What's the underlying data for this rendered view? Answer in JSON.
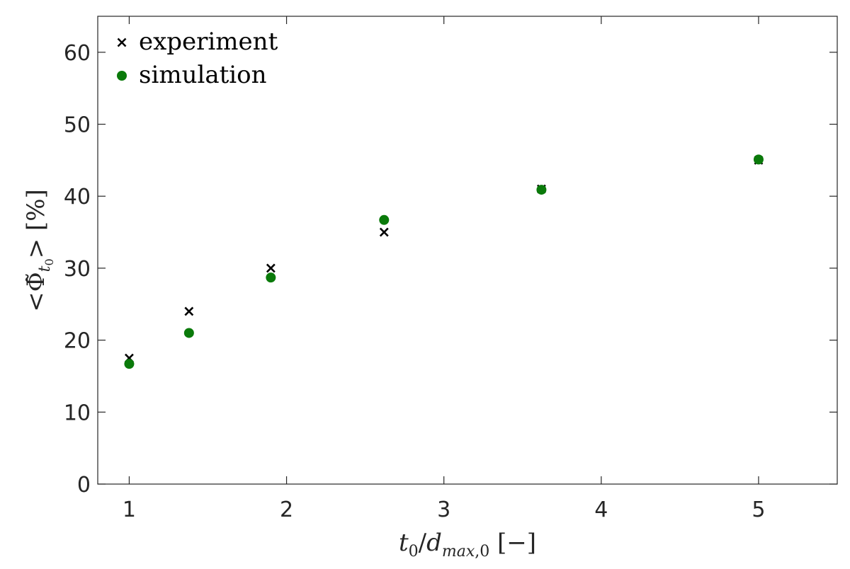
{
  "chart_data": {
    "type": "scatter",
    "title": "",
    "xlabel": "t₀/d_max,0 [−]",
    "ylabel": "<Φ̃_t₀> [%]",
    "xlim": [
      0.8,
      5.5
    ],
    "ylim": [
      0,
      65
    ],
    "xticks": [
      "1",
      "2",
      "3",
      "4",
      "5"
    ],
    "yticks": [
      "0",
      "10",
      "20",
      "30",
      "40",
      "50",
      "60"
    ],
    "grid": false,
    "legend": "top-left",
    "series": [
      {
        "name": "experiment",
        "marker": "x",
        "color": "#000000",
        "x": [
          1.0,
          1.38,
          1.9,
          2.62,
          3.62,
          5.0
        ],
        "y": [
          17.5,
          24.0,
          30.0,
          35.0,
          41.0,
          45.0
        ]
      },
      {
        "name": "simulation",
        "marker": "circle",
        "color": "#0a7a0a",
        "x": [
          1.0,
          1.38,
          1.9,
          2.62,
          3.62,
          5.0
        ],
        "y": [
          16.7,
          21.0,
          28.7,
          36.7,
          40.9,
          45.1
        ]
      }
    ]
  }
}
